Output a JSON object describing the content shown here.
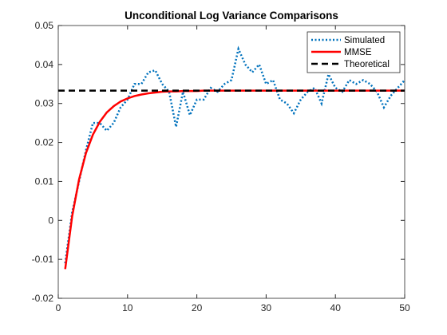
{
  "chart_data": {
    "type": "line",
    "title": "Unconditional Log Variance Comparisons",
    "x": [
      1,
      2,
      3,
      4,
      5,
      6,
      7,
      8,
      9,
      10,
      11,
      12,
      13,
      14,
      15,
      16,
      17,
      18,
      19,
      20,
      21,
      22,
      23,
      24,
      25,
      26,
      27,
      28,
      29,
      30,
      31,
      32,
      33,
      34,
      35,
      36,
      37,
      38,
      39,
      40,
      41,
      42,
      43,
      44,
      45,
      46,
      47,
      48,
      49,
      50
    ],
    "series": [
      {
        "name": "Simulated",
        "color": "#0072bd",
        "linestyle": "dotted",
        "values": [
          -0.011,
          0.002,
          0.01,
          0.018,
          0.025,
          0.025,
          0.023,
          0.025,
          0.029,
          0.031,
          0.035,
          0.035,
          0.038,
          0.0385,
          0.035,
          0.033,
          0.024,
          0.033,
          0.027,
          0.031,
          0.031,
          0.034,
          0.033,
          0.035,
          0.036,
          0.044,
          0.04,
          0.038,
          0.04,
          0.035,
          0.036,
          0.031,
          0.03,
          0.0275,
          0.031,
          0.033,
          0.034,
          0.03,
          0.0375,
          0.034,
          0.033,
          0.036,
          0.035,
          0.036,
          0.035,
          0.033,
          0.029,
          0.032,
          0.034,
          0.036
        ]
      },
      {
        "name": "MMSE",
        "color": "#ff0000",
        "linestyle": "solid",
        "values": [
          -0.0125,
          0.001,
          0.0105,
          0.0173,
          0.022,
          0.0253,
          0.0277,
          0.0293,
          0.0305,
          0.0313,
          0.0319,
          0.0323,
          0.0326,
          0.0328,
          0.033,
          0.0331,
          0.0331,
          0.0332,
          0.0332,
          0.0332,
          0.0333,
          0.0333,
          0.0333,
          0.0333,
          0.0333,
          0.0333,
          0.0333,
          0.0333,
          0.0333,
          0.0333,
          0.0333,
          0.0333,
          0.0333,
          0.0333,
          0.0333,
          0.0333,
          0.0333,
          0.0333,
          0.0333,
          0.0333,
          0.0333,
          0.0333,
          0.0333,
          0.0333,
          0.0333,
          0.0333,
          0.0333,
          0.0333,
          0.0333,
          0.0333
        ]
      },
      {
        "name": "Theoretical",
        "color": "#000000",
        "linestyle": "dashed",
        "x": [
          0,
          50
        ],
        "values": [
          0.0333,
          0.0333
        ]
      }
    ],
    "xlim": [
      0,
      50
    ],
    "xticks": [
      0,
      10,
      20,
      30,
      40,
      50
    ],
    "ylim": [
      -0.02,
      0.05
    ],
    "yticks": [
      -0.02,
      -0.01,
      0,
      0.01,
      0.02,
      0.03,
      0.04,
      0.05
    ],
    "legend": "top-right",
    "grid": false
  }
}
